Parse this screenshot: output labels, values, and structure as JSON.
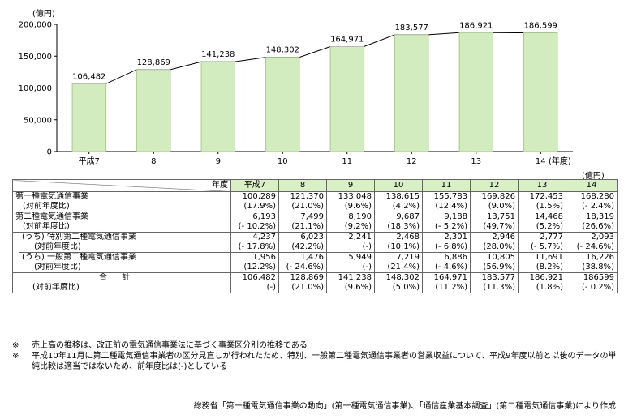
{
  "chart_data": {
    "type": "bar",
    "unit": "(億円)",
    "xlabel": "(年度)",
    "categories": [
      "平成7",
      "8",
      "9",
      "10",
      "11",
      "12",
      "13",
      "14"
    ],
    "values": [
      106482,
      128869,
      141238,
      148302,
      164971,
      183577,
      186921,
      186599
    ],
    "value_labels": [
      "106,482",
      "128,869",
      "141,238",
      "148,302",
      "164,971",
      "183,577",
      "186,921",
      "186,599"
    ],
    "ylim": [
      0,
      200000
    ],
    "yticks": [
      "0",
      "50,000",
      "100,000",
      "150,000",
      "200,000"
    ],
    "bar_color": "#d3ecbf",
    "bar_edge": "#a9c98e",
    "grid": false
  },
  "table": {
    "unit": "(億円)",
    "header_label": "年度",
    "years": [
      "平成7",
      "8",
      "9",
      "10",
      "11",
      "12",
      "13",
      "14"
    ],
    "sections": [
      {
        "label": "第一種電気通信事業",
        "sub_label": "(対前年度比)",
        "indent": false,
        "values": [
          "100,289",
          "121,370",
          "133,048",
          "138,615",
          "155,783",
          "169,826",
          "172,453",
          "168,280"
        ],
        "ratios": [
          "(17.9%)",
          "(21.0%)",
          "(9.6%)",
          "(4.2%)",
          "(12.4%)",
          "(9.0%)",
          "(1.5%)",
          "(- 2.4%)"
        ]
      },
      {
        "label": "第二種電気通信事業",
        "sub_label": "(対前年度比)",
        "indent": false,
        "values": [
          "6,193",
          "7,499",
          "8,190",
          "9,687",
          "9,188",
          "13,751",
          "14,468",
          "18,319"
        ],
        "ratios": [
          "(- 10.2%)",
          "(21.1%)",
          "(9.2%)",
          "(18.3%)",
          "(- 5.2%)",
          "(49.7%)",
          "(5.2%)",
          "(26.6%)"
        ]
      },
      {
        "label": "(うち) 特別第二種電気通信事業",
        "sub_label": "(対前年度比)",
        "indent": true,
        "values": [
          "4,237",
          "6,023",
          "2,241",
          "2,468",
          "2,301",
          "2,946",
          "2,777",
          "2,093"
        ],
        "ratios": [
          "(- 17.8%)",
          "(42.2%)",
          "(-)",
          "(10.1%)",
          "(- 6.8%)",
          "(28.0%)",
          "(- 5.7%)",
          "(- 24.6%)"
        ]
      },
      {
        "label": "(うち) 一般第二種電気通信事業",
        "sub_label": "(対前年度比)",
        "indent": true,
        "values": [
          "1,956",
          "1,476",
          "5,949",
          "7,219",
          "6,886",
          "10,805",
          "11,691",
          "16,226"
        ],
        "ratios": [
          "(12.2%)",
          "(- 24.6%)",
          "(-)",
          "(21.4%)",
          "(- 4.6%)",
          "(56.9%)",
          "(8.2%)",
          "(38.8%)"
        ]
      },
      {
        "label": "合計",
        "sub_label": "(対前年度比)",
        "indent": false,
        "total": true,
        "values": [
          "106,482",
          "128,869",
          "141,238",
          "148,302",
          "164,971",
          "183,577",
          "186,921",
          "186599"
        ],
        "ratios": [
          "(-)",
          "(21.0%)",
          "(9.6%)",
          "(5.0%)",
          "(11.2%)",
          "(11.3%)",
          "(1.8%)",
          "(- 0.2%)"
        ]
      }
    ]
  },
  "notes": [
    {
      "mark": "※",
      "text": "売上高の推移は、改正前の電気通信事業法に基づく事業区分別の推移である"
    },
    {
      "mark": "※",
      "text": "平成10年11月に第二種電気通信事業者の区分見直しが行われたため、特別、一般第二種電気通信事業者の営業収益について、平成9年度以前と以後のデータの単純比較は適当ではないため、前年度比は(-)としている"
    }
  ],
  "source": "総務省「第一種電気通信事業の動向」(第一種電気通信事業)、「通信産業基本調査」(第二種電気通信事業)により作成"
}
